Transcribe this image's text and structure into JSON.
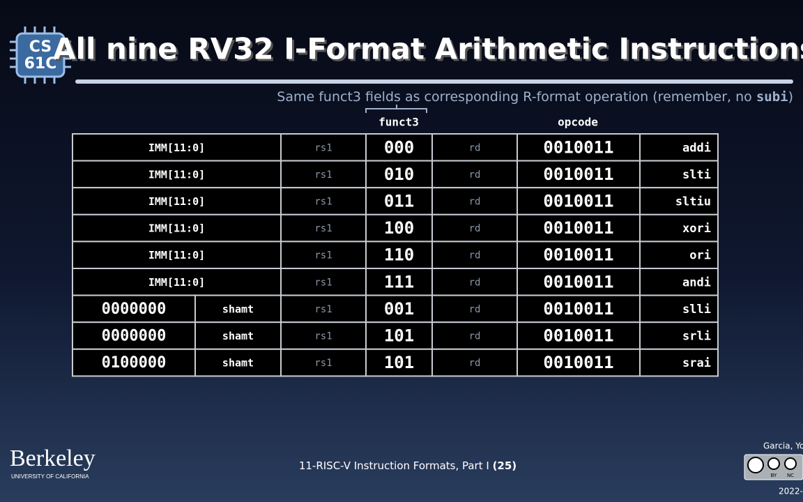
{
  "logo": {
    "line1": "CS",
    "line2": "61C"
  },
  "header": {
    "title": "All nine RV32 I-Format Arithmetic Instructions",
    "subtitle": {
      "before": "Same funct3 fields as corresponding R-format operation (remember, no ",
      "code": "subi",
      "after": ")"
    }
  },
  "table": {
    "column_headers": {
      "funct3": "funct3",
      "opcode": "opcode"
    },
    "rows": [
      [
        "IMM[11:0]",
        "rs1",
        "000",
        "rd",
        "0010011",
        "addi"
      ],
      [
        "IMM[11:0]",
        "rs1",
        "010",
        "rd",
        "0010011",
        "slti"
      ],
      [
        "IMM[11:0]",
        "rs1",
        "011",
        "rd",
        "0010011",
        "sltiu"
      ],
      [
        "IMM[11:0]",
        "rs1",
        "100",
        "rd",
        "0010011",
        "xori"
      ],
      [
        "IMM[11:0]",
        "rs1",
        "110",
        "rd",
        "0010011",
        "ori"
      ],
      [
        "IMM[11:0]",
        "rs1",
        "111",
        "rd",
        "0010011",
        "andi"
      ],
      [
        "0000000",
        "shamt",
        "rs1",
        "001",
        "rd",
        "0010011",
        "slli"
      ],
      [
        "0000000",
        "shamt",
        "rs1",
        "101",
        "rd",
        "0010011",
        "srli"
      ],
      [
        "0100000",
        "shamt",
        "rs1",
        "101",
        "rd",
        "0010011",
        "srai"
      ]
    ]
  },
  "footer": {
    "university": "Berkeley",
    "university_sub": "UNIVERSITY OF CALIFORNIA",
    "lecture": {
      "text": "11-RISC-V Instruction Formats, Part I ",
      "page": "(25)"
    },
    "author": "Garcia, Yo",
    "license_by": "BY",
    "license_nc": "NC",
    "year": "2022-"
  }
}
